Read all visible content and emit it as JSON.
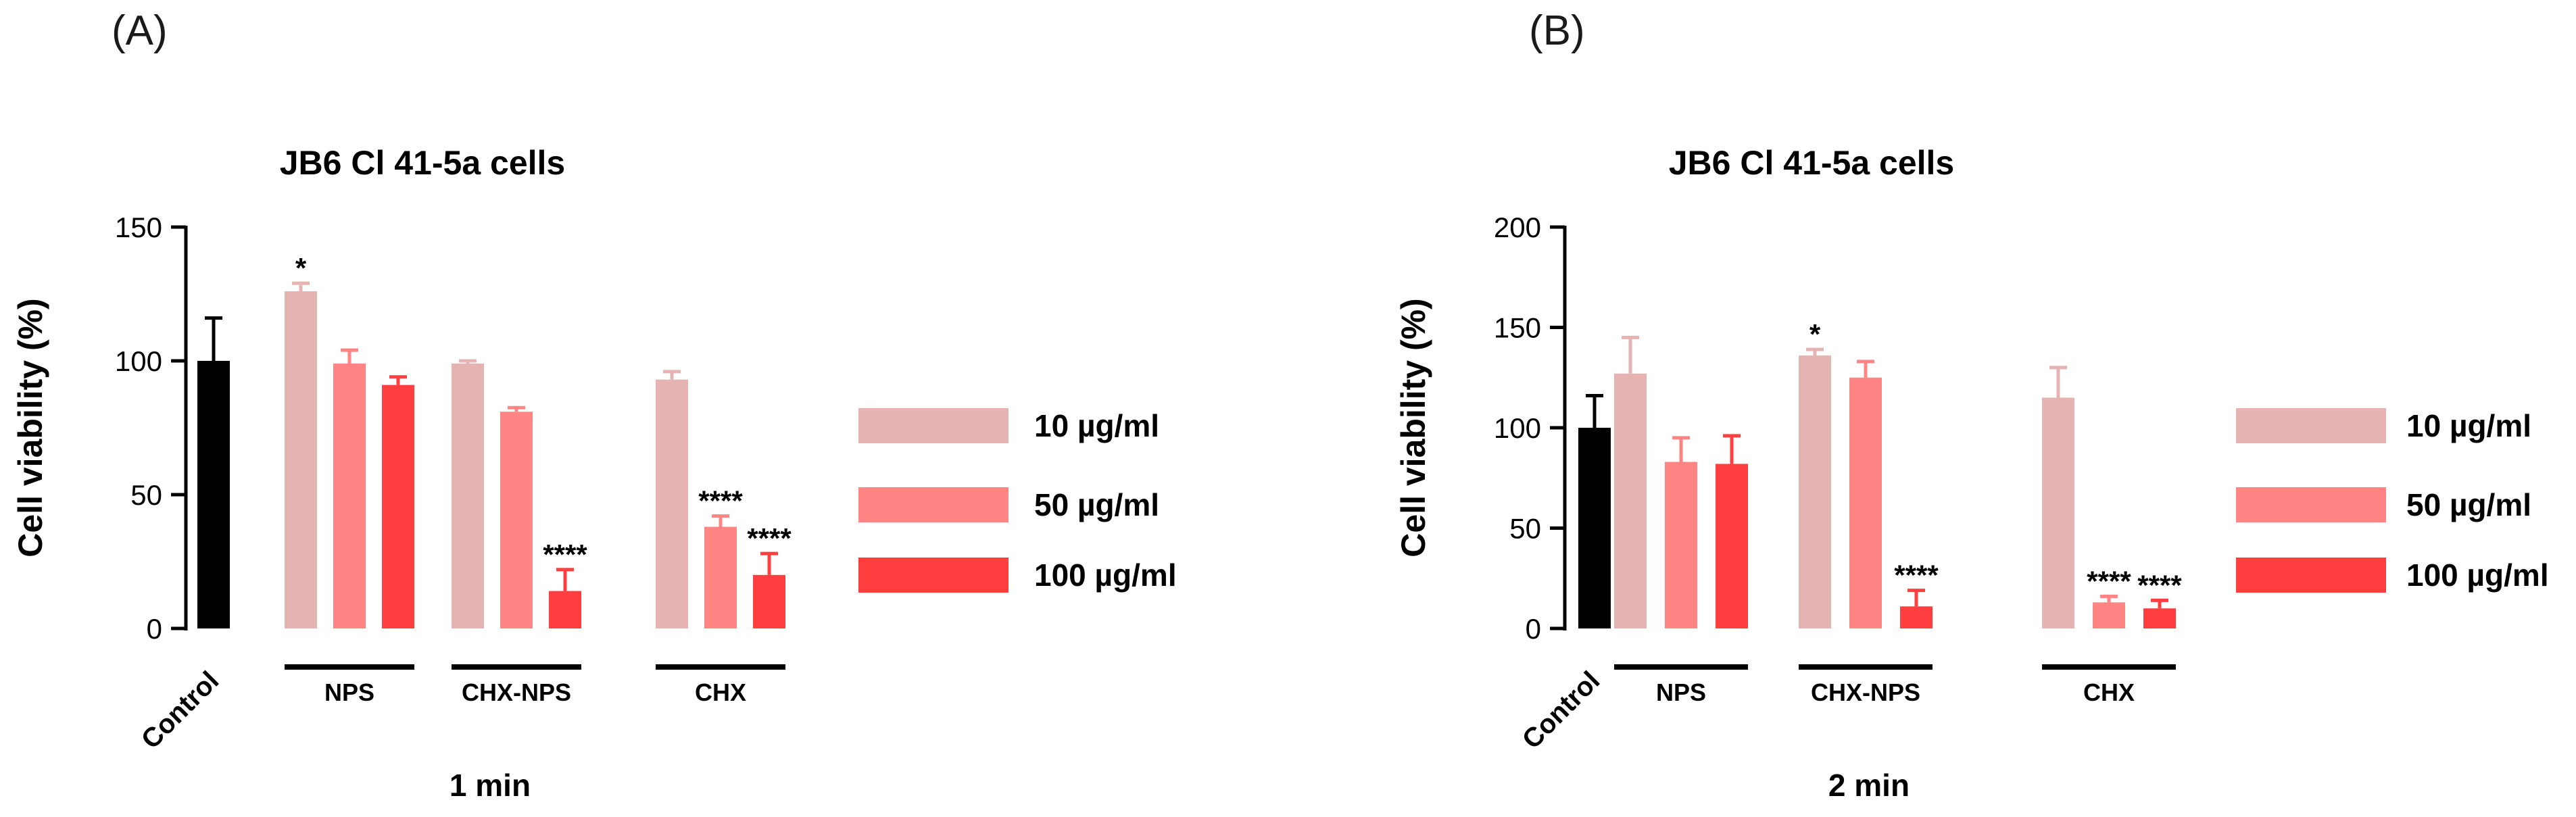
{
  "colors": {
    "control": "#000000",
    "c10": "#E5B4B2",
    "c50": "#FF8585",
    "c100": "#FF3F3F",
    "axis": "#000000"
  },
  "legend": [
    {
      "label": "10 µg/ml",
      "color_key": "c10"
    },
    {
      "label": "50 µg/ml",
      "color_key": "c50"
    },
    {
      "label": "100 µg/ml",
      "color_key": "c100"
    }
  ],
  "chart_data": [
    {
      "panel_label": "(A)",
      "type": "bar",
      "title": "JB6 Cl 41-5a cells",
      "ylabel": "Cell viability (%)",
      "xlabel": "1 min",
      "ylim": [
        0,
        150
      ],
      "yticks": [
        0,
        50,
        100,
        150
      ],
      "control": {
        "label": "Control",
        "value": 100,
        "error": 16
      },
      "groups": [
        {
          "label": "NPS",
          "bars": [
            {
              "series": "10 µg/ml",
              "value": 126,
              "error": 3,
              "sig": "*"
            },
            {
              "series": "50 µg/ml",
              "value": 99,
              "error": 5,
              "sig": ""
            },
            {
              "series": "100 µg/ml",
              "value": 91,
              "error": 3,
              "sig": ""
            }
          ]
        },
        {
          "label": "CHX-NPS",
          "bars": [
            {
              "series": "10 µg/ml",
              "value": 99,
              "error": 1,
              "sig": ""
            },
            {
              "series": "50 µg/ml",
              "value": 81,
              "error": 1.5,
              "sig": ""
            },
            {
              "series": "100 µg/ml",
              "value": 14,
              "error": 8,
              "sig": "****"
            }
          ]
        },
        {
          "label": "CHX",
          "bars": [
            {
              "series": "10 µg/ml",
              "value": 93,
              "error": 3,
              "sig": ""
            },
            {
              "series": "50 µg/ml",
              "value": 38,
              "error": 4,
              "sig": "****"
            },
            {
              "series": "100 µg/ml",
              "value": 20,
              "error": 8,
              "sig": "****"
            }
          ]
        }
      ]
    },
    {
      "panel_label": "(B)",
      "type": "bar",
      "title": "JB6 Cl 41-5a cells",
      "ylabel": "Cell viability (%)",
      "xlabel": "2 min",
      "ylim": [
        0,
        200
      ],
      "yticks": [
        0,
        50,
        100,
        150,
        200
      ],
      "control": {
        "label": "Control",
        "value": 100,
        "error": 16
      },
      "groups": [
        {
          "label": "NPS",
          "bars": [
            {
              "series": "10 µg/ml",
              "value": 127,
              "error": 18,
              "sig": ""
            },
            {
              "series": "50 µg/ml",
              "value": 83,
              "error": 12,
              "sig": ""
            },
            {
              "series": "100 µg/ml",
              "value": 82,
              "error": 14,
              "sig": ""
            }
          ]
        },
        {
          "label": "CHX-NPS",
          "bars": [
            {
              "series": "10 µg/ml",
              "value": 136,
              "error": 3,
              "sig": "*"
            },
            {
              "series": "50 µg/ml",
              "value": 125,
              "error": 8,
              "sig": ""
            },
            {
              "series": "100 µg/ml",
              "value": 11,
              "error": 8,
              "sig": "****"
            }
          ]
        },
        {
          "label": "CHX",
          "bars": [
            {
              "series": "10 µg/ml",
              "value": 115,
              "error": 15,
              "sig": ""
            },
            {
              "series": "50 µg/ml",
              "value": 13,
              "error": 3,
              "sig": "****"
            },
            {
              "series": "100 µg/ml",
              "value": 10,
              "error": 4,
              "sig": "****"
            }
          ]
        }
      ]
    }
  ]
}
